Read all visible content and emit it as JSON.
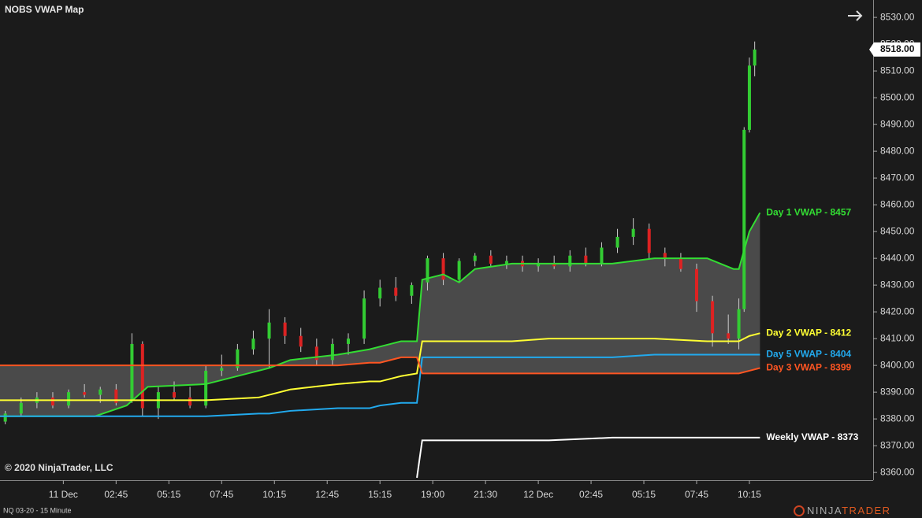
{
  "chart_data": {
    "type": "candlestick",
    "title": "NOBS VWAP Map",
    "xlim": [
      0,
      165
    ],
    "ylim": [
      8357.1,
      8536.5
    ],
    "xticks": [
      {
        "value": 12,
        "label": "11 Dec"
      },
      {
        "value": 22,
        "label": "02:45"
      },
      {
        "value": 32,
        "label": "05:15"
      },
      {
        "value": 42,
        "label": "07:45"
      },
      {
        "value": 52,
        "label": "10:15"
      },
      {
        "value": 62,
        "label": "12:45"
      },
      {
        "value": 72,
        "label": "15:15"
      },
      {
        "value": 82,
        "label": "19:00"
      },
      {
        "value": 92,
        "label": "21:30"
      },
      {
        "value": 102,
        "label": "12 Dec"
      },
      {
        "value": 112,
        "label": "02:45"
      },
      {
        "value": 122,
        "label": "05:15"
      },
      {
        "value": 132,
        "label": "07:45"
      },
      {
        "value": 142,
        "label": "10:15"
      }
    ],
    "yticks": [
      {
        "value": 8360,
        "label": "8360.00"
      },
      {
        "value": 8370,
        "label": "8370.00"
      },
      {
        "value": 8380,
        "label": "8380.00"
      },
      {
        "value": 8390,
        "label": "8390.00"
      },
      {
        "value": 8400,
        "label": "8400.00"
      },
      {
        "value": 8410,
        "label": "8410.00"
      },
      {
        "value": 8420,
        "label": "8420.00"
      },
      {
        "value": 8430,
        "label": "8430.00"
      },
      {
        "value": 8440,
        "label": "8440.00"
      },
      {
        "value": 8450,
        "label": "8450.00"
      },
      {
        "value": 8460,
        "label": "8460.00"
      },
      {
        "value": 8470,
        "label": "8470.00"
      },
      {
        "value": 8480,
        "label": "8480.00"
      },
      {
        "value": 8490,
        "label": "8490.00"
      },
      {
        "value": 8500,
        "label": "8500.00"
      },
      {
        "value": 8510,
        "label": "8510.00"
      },
      {
        "value": 8520,
        "label": "8520.00"
      },
      {
        "value": 8530,
        "label": "8530.00"
      }
    ],
    "last_price": {
      "value": 8518,
      "label": "8518.00"
    },
    "up_color": "#33cc33",
    "down_color": "#dd2222",
    "candles": {
      "x": [
        1,
        4,
        7,
        10,
        13,
        16,
        19,
        22,
        25,
        27,
        30,
        33,
        36,
        39,
        42,
        45,
        48,
        51,
        54,
        57,
        60,
        63,
        66,
        69,
        72,
        75,
        78,
        81,
        84,
        87,
        90,
        93,
        96,
        99,
        102,
        105,
        108,
        111,
        114,
        117,
        120,
        123,
        126,
        129,
        132,
        135,
        138,
        140,
        141,
        142,
        143
      ],
      "open": [
        8379,
        8382,
        8386,
        8388,
        8385,
        8390,
        8389,
        8391,
        8387,
        8408,
        8384,
        8390,
        8388,
        8385,
        8398,
        8399,
        8406,
        8410,
        8416,
        8411,
        8407,
        8402,
        8408,
        8410,
        8425,
        8429,
        8426,
        8431,
        8440,
        8432,
        8439,
        8441,
        8438,
        8439,
        8437,
        8438,
        8437,
        8441,
        8438,
        8444,
        8448,
        8451,
        8442,
        8440,
        8436,
        8424,
        8412,
        8410,
        8421,
        8488,
        8512
      ],
      "high": [
        8383,
        8388,
        8390,
        8390,
        8391,
        8393,
        8392,
        8393,
        8412,
        8409,
        8392,
        8394,
        8392,
        8400,
        8404,
        8408,
        8413,
        8421,
        8418,
        8414,
        8410,
        8410,
        8412,
        8428,
        8432,
        8433,
        8431,
        8441,
        8442,
        8440,
        8442,
        8443,
        8441,
        8441,
        8440,
        8441,
        8443,
        8444,
        8446,
        8451,
        8455,
        8453,
        8444,
        8442,
        8438,
        8426,
        8419,
        8425,
        8489,
        8515,
        8521
      ],
      "low": [
        8378,
        8381,
        8384,
        8384,
        8384,
        8388,
        8386,
        8385,
        8386,
        8381,
        8380,
        8387,
        8384,
        8384,
        8396,
        8398,
        8404,
        8399,
        8408,
        8405,
        8400,
        8400,
        8404,
        8408,
        8422,
        8424,
        8423,
        8428,
        8430,
        8431,
        8437,
        8437,
        8436,
        8435,
        8435,
        8436,
        8435,
        8437,
        8437,
        8442,
        8445,
        8440,
        8437,
        8435,
        8420,
        8407,
        8408,
        8406,
        8420,
        8487,
        8508
      ],
      "close": [
        8382,
        8386,
        8388,
        8385,
        8390,
        8389,
        8391,
        8386,
        8408,
        8384,
        8390,
        8388,
        8385,
        8398,
        8399,
        8406,
        8410,
        8416,
        8411,
        8407,
        8402,
        8408,
        8410,
        8425,
        8429,
        8426,
        8430,
        8440,
        8432,
        8439,
        8441,
        8438,
        8439,
        8437,
        8438,
        8437,
        8441,
        8438,
        8444,
        8448,
        8451,
        8442,
        8440,
        8436,
        8424,
        8412,
        8410,
        8421,
        8488,
        8512,
        8518
      ]
    },
    "fill_between": [
      "Day 1 VWAP - 8457",
      "Day 3 VWAP - 8399"
    ],
    "fill_color": "#4a4a4a",
    "x": [
      0,
      18,
      24,
      28,
      39,
      49,
      51,
      55,
      64,
      70,
      72,
      76,
      79,
      80,
      84,
      87,
      90,
      97,
      104,
      116,
      124,
      134,
      139,
      140,
      142,
      144
    ],
    "series": [
      {
        "name": "Day 1 VWAP - 8457",
        "color": "#33dd33",
        "values": [
          8381,
          8381,
          8385,
          8392,
          8393,
          8398,
          8399,
          8402,
          8404,
          8406,
          8407,
          8409,
          8409,
          8432,
          8434,
          8431,
          8436,
          8438,
          8438,
          8438,
          8440,
          8440,
          8436,
          8436,
          8450,
          8457
        ]
      },
      {
        "name": "Day 2 VWAP - 8412",
        "color": "#ffff33",
        "values": [
          8387,
          8387,
          8387,
          8387,
          8387,
          8388,
          8389,
          8391,
          8393,
          8394,
          8394,
          8396,
          8397,
          8409,
          8409,
          8409,
          8409,
          8409,
          8410,
          8410,
          8410,
          8409,
          8409,
          8409,
          8411,
          8412
        ]
      },
      {
        "name": "Day 5 VWAP - 8404",
        "color": "#22aaee",
        "values": [
          8381,
          8381,
          8381,
          8381,
          8381,
          8382,
          8382,
          8383,
          8384,
          8384,
          8385,
          8386,
          8386,
          8403,
          8403,
          8403,
          8403,
          8403,
          8403,
          8403,
          8404,
          8404,
          8404,
          8404,
          8404,
          8404
        ]
      },
      {
        "name": "Day 3 VWAP - 8399",
        "color": "#ff5522",
        "values": [
          8400,
          8400,
          8400,
          8400,
          8400,
          8400,
          8400,
          8400,
          8400,
          8401,
          8401,
          8403,
          8403,
          8397,
          8397,
          8397,
          8397,
          8397,
          8397,
          8397,
          8397,
          8397,
          8397,
          8397,
          8398,
          8399
        ]
      },
      {
        "name": "Weekly VWAP - 8373",
        "color": "#ffffff",
        "values": [
          null,
          null,
          null,
          null,
          null,
          null,
          null,
          null,
          null,
          null,
          null,
          null,
          8358,
          8372,
          8372,
          8372,
          8372,
          8372,
          8372,
          8373,
          8373,
          8373,
          8373,
          8373,
          8373,
          8373
        ]
      }
    ]
  },
  "footer": {
    "copyright": "© 2020 NinjaTrader, LLC",
    "instrument": "NQ 03-20 - 15 Minute",
    "brand_left": "NINJA",
    "brand_right": "TRADER"
  }
}
